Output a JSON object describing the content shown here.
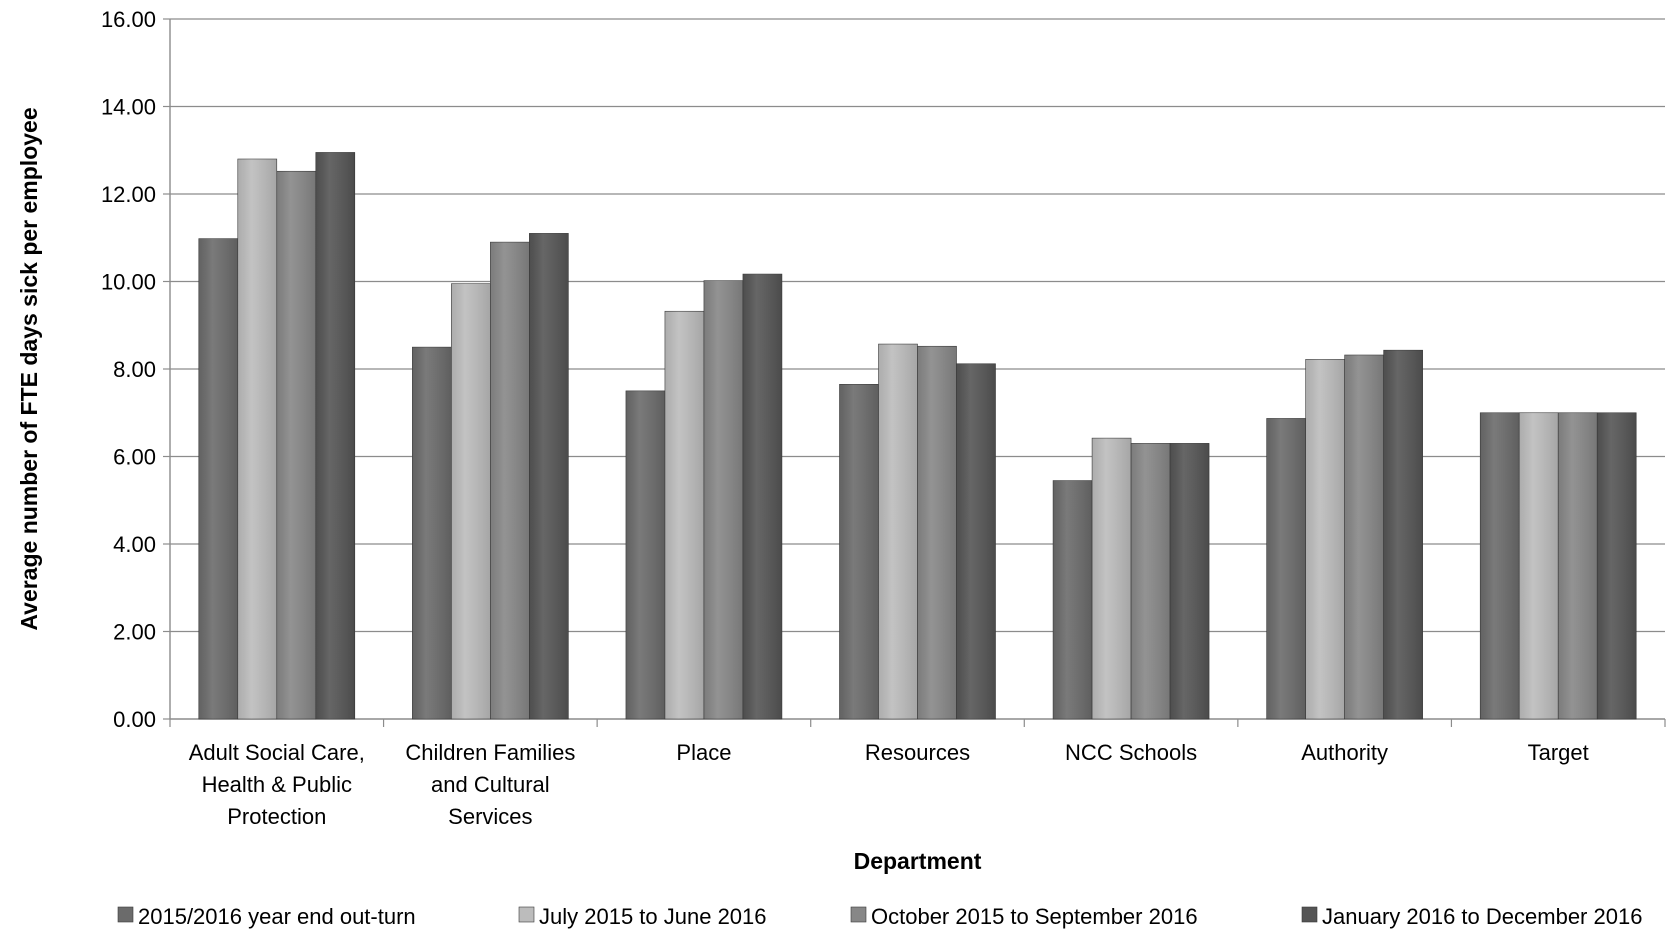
{
  "chart_data": {
    "type": "bar",
    "xlabel": "Department",
    "ylabel": "Average number of FTE days sick per employee",
    "ylim": [
      0,
      16
    ],
    "ytick_step": 2,
    "ytick_labels": [
      "0.00",
      "2.00",
      "4.00",
      "6.00",
      "8.00",
      "10.00",
      "12.00",
      "14.00",
      "16.00"
    ],
    "grid": true,
    "legend_position": "bottom",
    "categories": [
      [
        "Adult Social Care,",
        "Health & Public",
        "Protection"
      ],
      [
        "Children Families",
        "and Cultural",
        "Services"
      ],
      [
        "Place"
      ],
      [
        "Resources"
      ],
      [
        "NCC Schools"
      ],
      [
        "Authority"
      ],
      [
        "Target"
      ]
    ],
    "series": [
      {
        "name": "2015/2016 year end out-turn",
        "color": "#6b6b6b",
        "values": [
          10.98,
          8.5,
          7.5,
          7.65,
          5.45,
          6.87,
          7.0
        ]
      },
      {
        "name": "July 2015 to June 2016",
        "color": "#bcbcbc",
        "values": [
          12.8,
          9.95,
          9.32,
          8.57,
          6.42,
          8.22,
          7.0
        ]
      },
      {
        "name": "October 2015 to September 2016",
        "color": "#878787",
        "values": [
          12.52,
          10.9,
          10.02,
          8.52,
          6.3,
          8.32,
          7.0
        ]
      },
      {
        "name": "January 2016 to December 2016",
        "color": "#555555",
        "values": [
          12.95,
          11.1,
          10.17,
          8.12,
          6.3,
          8.43,
          7.0
        ]
      }
    ]
  }
}
